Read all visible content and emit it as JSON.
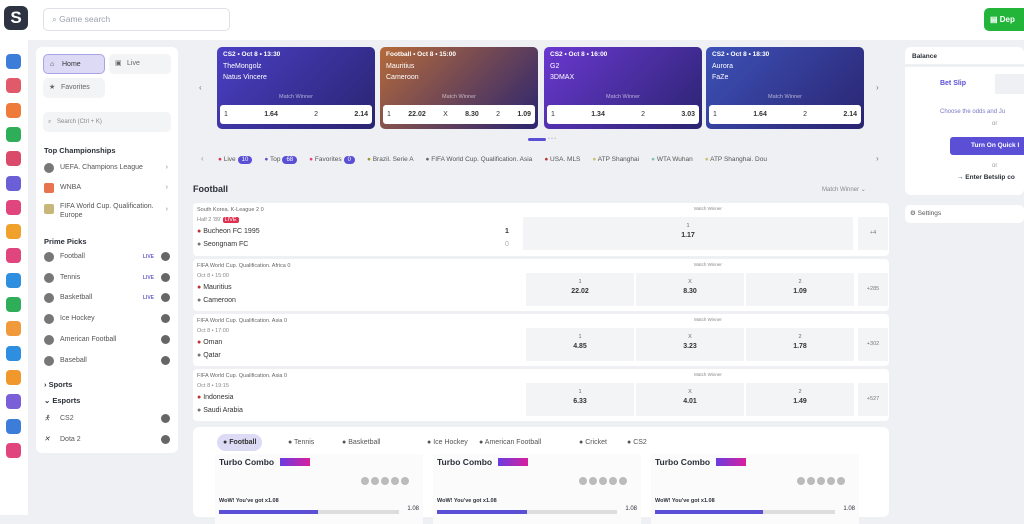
{
  "header": {
    "logo": "S",
    "search_placeholder": "Game search",
    "deposit": "Dep"
  },
  "left_nav": {
    "home": "Home",
    "live": "Live",
    "favorites": "Favorites",
    "search_placeholder": "Search (Ctrl + K)",
    "top_championships_title": "Top Championships",
    "championships": [
      "UEFA. Champions League",
      "WNBA",
      "FIFA World Cup. Qualification. Europe"
    ],
    "prime_picks_title": "Prime Picks",
    "prime_picks": [
      {
        "label": "Football",
        "live": "LIVE"
      },
      {
        "label": "Tennis",
        "live": "LIVE"
      },
      {
        "label": "Basketball",
        "live": "LIVE"
      },
      {
        "label": "Ice Hockey"
      },
      {
        "label": "American Football"
      },
      {
        "label": "Baseball"
      }
    ],
    "sports": "Sports",
    "esports": "Esports",
    "esports_items": [
      "CS2",
      "Dota 2"
    ]
  },
  "carousel": [
    {
      "header": "CS2 • Oct 8 • 13:30",
      "team1": "TheMongolz",
      "team2": "Natus Vincere",
      "market": "Match Winner",
      "odds": [
        "1",
        "1.64",
        "2",
        "2.14"
      ],
      "bg": "#4a3fc4"
    },
    {
      "header": "Football • Oct 8 • 15:00",
      "team1": "Mauritius",
      "team2": "Cameroon",
      "market": "Match Winner",
      "odds": [
        "1",
        "22.02",
        "X",
        "8.30",
        "2",
        "1.09"
      ],
      "bg": "#b56a3a"
    },
    {
      "header": "CS2 • Oct 8 • 16:00",
      "team1": "G2",
      "team2": "3DMAX",
      "market": "Match Winner",
      "odds": [
        "1",
        "1.34",
        "2",
        "3.03"
      ],
      "bg": "#6a38d0"
    },
    {
      "header": "CS2 • Oct 8 • 18:30",
      "team1": "Aurora",
      "team2": "FaZe",
      "market": "Match Winner",
      "odds": [
        "1",
        "1.64",
        "2",
        "2.14"
      ],
      "bg": "#3d52b8"
    }
  ],
  "filters": [
    {
      "label": "Live",
      "count": "10"
    },
    {
      "label": "Top",
      "count": "68"
    },
    {
      "label": "Favorites",
      "count": "0"
    },
    {
      "label": "Brazil. Serie A"
    },
    {
      "label": "FIFA World Cup. Qualification. Asia"
    },
    {
      "label": "USA. MLS"
    },
    {
      "label": "ATP Shanghai"
    },
    {
      "label": "WTA Wuhan"
    },
    {
      "label": "ATP Shanghai. Dou"
    }
  ],
  "section": {
    "title": "Football",
    "market_select": "Match Winner"
  },
  "matches": [
    {
      "league": "South Korea. K-League 2  0",
      "time": "Half 2 '89'",
      "live": "LIVE",
      "team1": "Bucheon FC 1995",
      "team2": "Seongnam FC",
      "score1": "1",
      "score2": "0",
      "market": "Match Winner",
      "outcomes": [
        {
          "l": "1",
          "v": "1.17"
        }
      ],
      "more": "+4"
    },
    {
      "league": "FIFA World Cup. Qualification. Africa  0",
      "time": "Oct 8 • 15:00",
      "team1": "Mauritius",
      "team2": "Cameroon",
      "market": "Match Winner",
      "outcomes": [
        {
          "l": "1",
          "v": "22.02"
        },
        {
          "l": "X",
          "v": "8.30"
        },
        {
          "l": "2",
          "v": "1.09"
        }
      ],
      "more": "+285"
    },
    {
      "league": "FIFA World Cup. Qualification. Asia  0",
      "time": "Oct 8 • 17:00",
      "team1": "Oman",
      "team2": "Qatar",
      "market": "Match Winner",
      "outcomes": [
        {
          "l": "1",
          "v": "4.85"
        },
        {
          "l": "X",
          "v": "3.23"
        },
        {
          "l": "2",
          "v": "1.78"
        }
      ],
      "more": "+302"
    },
    {
      "league": "FIFA World Cup. Qualification. Asia  0",
      "time": "Oct 8 • 19:15",
      "team1": "Indonesia",
      "team2": "Saudi Arabia",
      "market": "Match Winner",
      "outcomes": [
        {
          "l": "1",
          "v": "6.33"
        },
        {
          "l": "X",
          "v": "4.01"
        },
        {
          "l": "2",
          "v": "1.49"
        }
      ],
      "more": "+527"
    }
  ],
  "sport_tabs": [
    "Football",
    "Tennis",
    "Basketball",
    "Ice Hockey",
    "American Football",
    "Cricket",
    "CS2"
  ],
  "turbo": [
    {
      "title": "Turbo Combo",
      "wow": "WoW! You've got x1.08",
      "mult": "1.08",
      "progress": 0.55
    },
    {
      "title": "Turbo Combo",
      "wow": "WoW! You've got x1.08",
      "mult": "1.08",
      "progress": 0.5
    },
    {
      "title": "Turbo Combo",
      "wow": "WoW! You've got x1.08",
      "mult": "1.08",
      "progress": 0.6
    }
  ],
  "right": {
    "balance": "Balance",
    "betslip_tab": "Bet Slip",
    "choose": "Choose the odds and Ju",
    "or1": "or",
    "quick": "Turn On Quick I",
    "or2": "or",
    "enter": "→ Enter Betslip co",
    "settings": "Settings"
  }
}
